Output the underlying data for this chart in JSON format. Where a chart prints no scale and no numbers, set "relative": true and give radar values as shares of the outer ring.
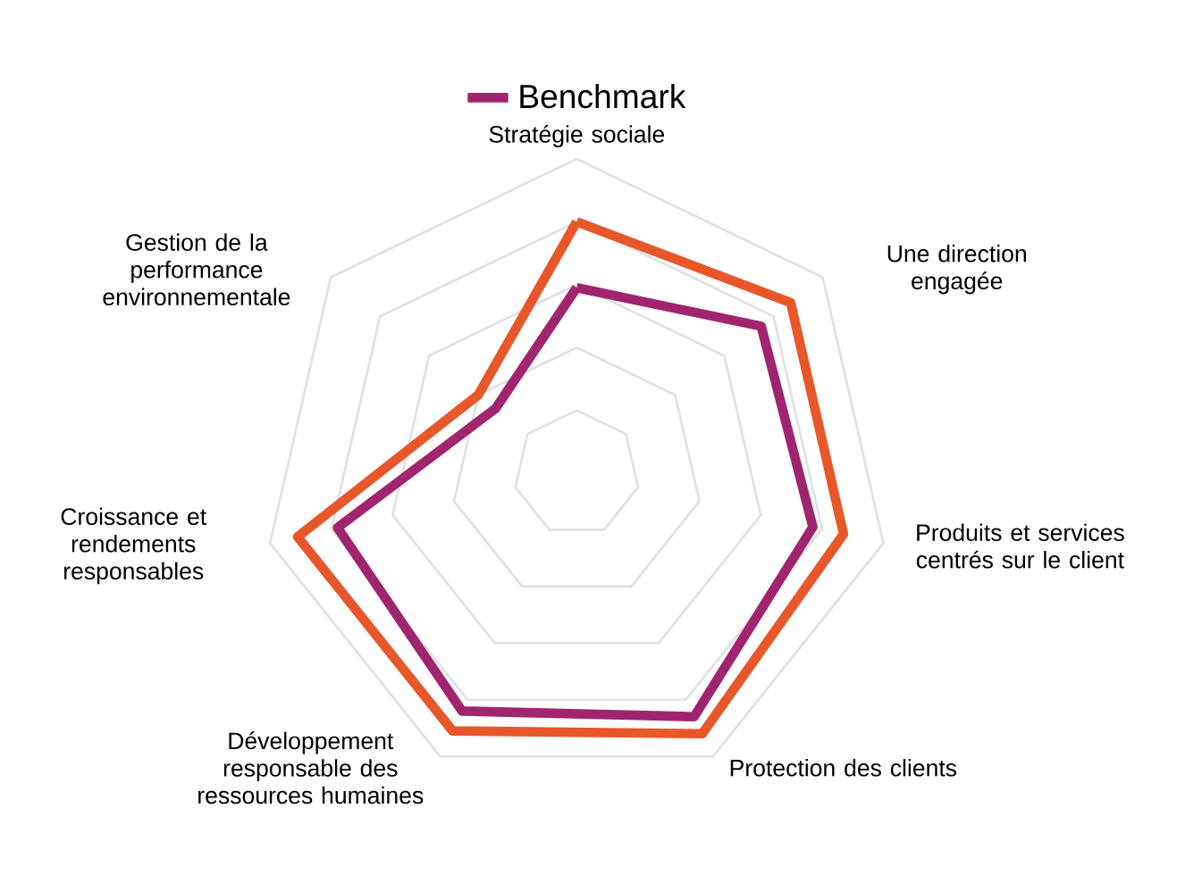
{
  "chart_data": {
    "type": "radar",
    "relative": true,
    "grid": true,
    "legend": "top",
    "categories": [
      "Stratégie sociale",
      "Une direction engagée",
      "Produits et services centrés sur le client",
      "Protection des clients",
      "Développement responsable des ressources humaines",
      "Croissance et rendements responsables",
      "Gestion de la performance environnementale"
    ],
    "series": [
      {
        "color": "#e8572a",
        "values": [
          0.8,
          0.87,
          0.87,
          0.92,
          0.91,
          0.91,
          0.4
        ]
      },
      {
        "name": "Benchmark",
        "color": "#a0256e",
        "values": [
          0.59,
          0.75,
          0.77,
          0.86,
          0.84,
          0.78,
          0.33
        ]
      }
    ]
  }
}
